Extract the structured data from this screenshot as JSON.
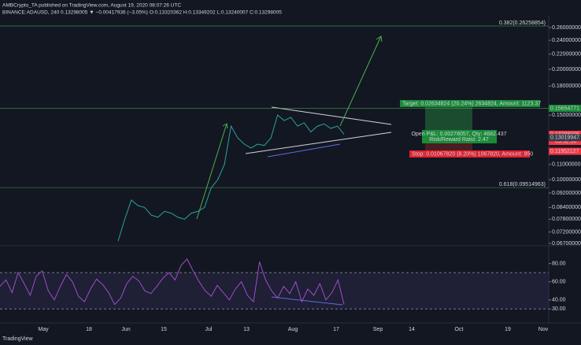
{
  "header": {
    "line1": "AMBCrypto_TA published on TradingView.com, August 19, 2020 08:07:26 UTC",
    "line2": "BINANCE:ADAUSD, 240  0.13298005 ▼ −0.00417936 (−3.05%) O:0.13320362 H:0.13349202 L:0.13240007 C:0.13298005"
  },
  "chart_data": [
    {
      "type": "line",
      "log": true,
      "color": "#26a69a",
      "ylim": [
        0.0667,
        0.28
      ],
      "yticks": [
        {
          "value": 0.26,
          "label": "0.26000000"
        },
        {
          "value": 0.24,
          "label": "0.24000000"
        },
        {
          "value": 0.22,
          "label": "0.22000000"
        },
        {
          "value": 0.2,
          "label": "0.20000000"
        },
        {
          "value": 0.18,
          "label": "0.18000000"
        },
        {
          "value": 0.15,
          "label": "0.15000000"
        },
        {
          "value": 0.11,
          "label": "0.11000000"
        },
        {
          "value": 0.1,
          "label": "0.10000000"
        },
        {
          "value": 0.092,
          "label": "0.09200000"
        },
        {
          "value": 0.084,
          "label": "0.08400000"
        },
        {
          "value": 0.078,
          "label": "0.07800000"
        },
        {
          "value": 0.072,
          "label": "0.07200000"
        },
        {
          "value": 0.067,
          "label": "0.06700000"
        }
      ],
      "values": [
        0.068,
        0.078,
        0.088,
        0.085,
        0.084,
        0.08,
        0.079,
        0.082,
        0.081,
        0.079,
        0.078,
        0.081,
        0.082,
        0.084,
        0.095,
        0.1,
        0.11,
        0.14,
        0.13,
        0.125,
        0.122,
        0.125,
        0.124,
        0.13,
        0.15,
        0.145,
        0.148,
        0.14,
        0.143,
        0.135,
        0.14,
        0.142,
        0.138,
        0.14,
        0.133
      ],
      "levels": [
        {
          "value": 0.26258854,
          "label": "0.382(0.26258854)"
        },
        {
          "value": 0.15654771,
          "label": "0.15654771"
        },
        {
          "value": 0.09514963,
          "label": "0.618(0.09514963)"
        }
      ],
      "price_flags": [
        {
          "value": 0.13298005,
          "color": "#f23645"
        },
        {
          "value": 0.13019947,
          "color": "#363a45"
        },
        {
          "value": 0.11952127,
          "color": "#f23645"
        }
      ],
      "countdown": "03:52:36",
      "annotations": {
        "target": "Target: 0.02634824 (20.24%) 2634824, Amount: 1123.37",
        "open": "Open P&L: 0.00278057, Qty: 4682.437",
        "rr": "Risk/Reward Ratio: 2.47",
        "stop": "Stop: 0.01067820 (8.20%) 1067820, Amount: 950"
      },
      "xticks": [
        "May",
        "18",
        "Jun",
        "15",
        "Jul",
        "13",
        "Aug",
        "17",
        "Sep",
        "14",
        "Oct",
        "19",
        "Nov"
      ]
    },
    {
      "type": "line",
      "color": "#9c4fc8",
      "ylim": [
        19,
        97
      ],
      "yticks": [
        {
          "value": 80,
          "label": "80.00"
        },
        {
          "value": 60,
          "label": "60.00"
        },
        {
          "value": 40,
          "label": "40.00"
        },
        {
          "value": 30,
          "label": "30.00"
        }
      ],
      "band": [
        30,
        70
      ],
      "values": [
        55,
        62,
        48,
        70,
        58,
        45,
        66,
        72,
        50,
        40,
        55,
        68,
        60,
        44,
        38,
        52,
        63,
        57,
        48,
        35,
        42,
        58,
        66,
        61,
        50,
        47,
        55,
        64,
        70,
        62,
        78,
        85,
        72,
        60,
        50,
        44,
        56,
        48,
        40,
        52,
        60,
        45,
        38,
        82,
        62,
        50,
        42,
        55,
        47,
        60,
        38,
        52,
        45,
        58,
        40,
        48,
        62,
        35
      ]
    }
  ],
  "footer": "TradingView"
}
